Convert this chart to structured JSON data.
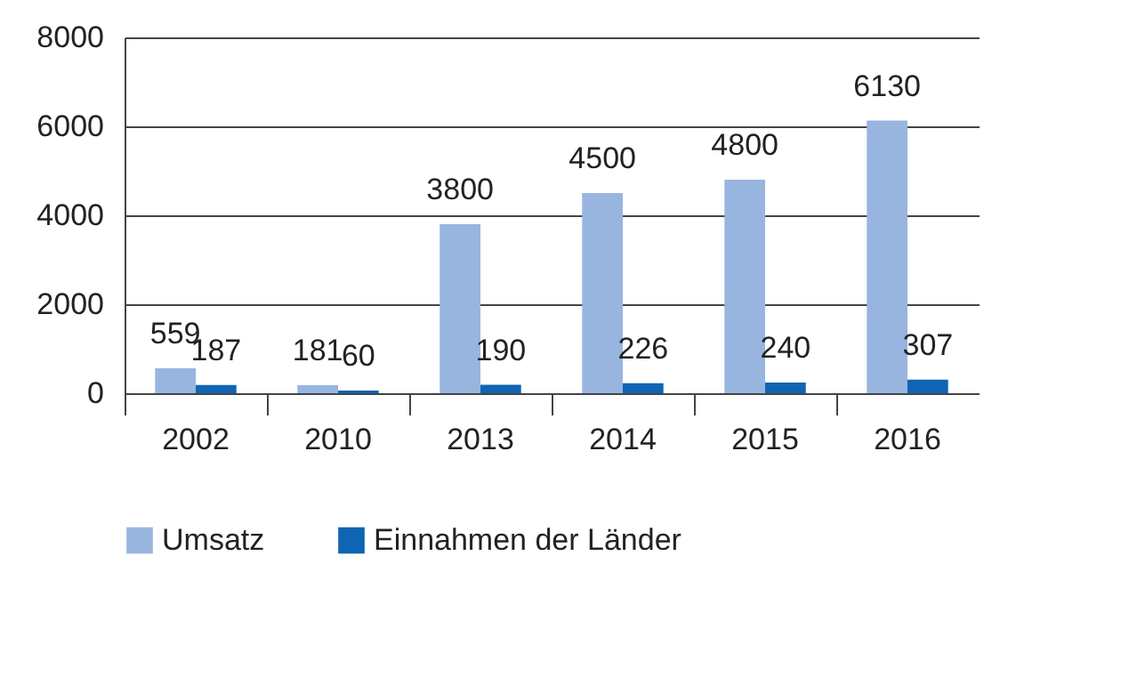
{
  "chart_data": {
    "type": "bar",
    "categories": [
      "2002",
      "2010",
      "2013",
      "2014",
      "2015",
      "2016"
    ],
    "series": [
      {
        "name": "Umsatz",
        "color": "#98b5e0",
        "values": [
          559,
          181,
          3800,
          4500,
          4800,
          6130
        ]
      },
      {
        "name": "Einnahmen der Länder",
        "color": "#0f65b3",
        "values": [
          187,
          60,
          190,
          226,
          240,
          307
        ]
      }
    ],
    "ylim": [
      0,
      8000
    ],
    "yticks": [
      0,
      2000,
      4000,
      6000,
      8000
    ],
    "grid": "y",
    "legend": "bottom",
    "data_labels": true
  }
}
